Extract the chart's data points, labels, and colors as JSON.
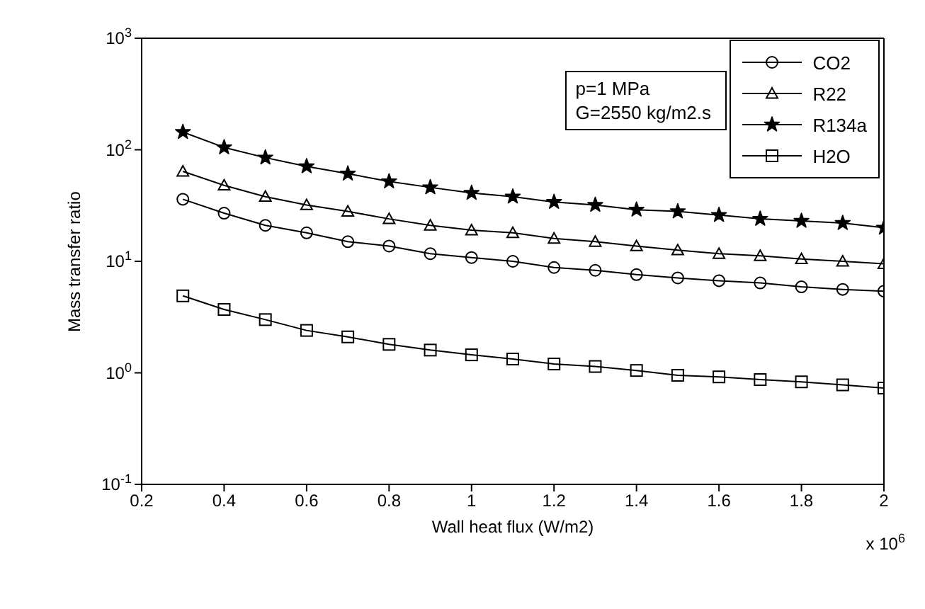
{
  "chart_data": {
    "type": "line",
    "xlabel": "Wall heat flux (W/m2)",
    "ylabel": "Mass transfer ratio",
    "x": [
      0.3,
      0.4,
      0.5,
      0.6,
      0.7,
      0.8,
      0.9,
      1.0,
      1.1,
      1.2,
      1.3,
      1.4,
      1.5,
      1.6,
      1.7,
      1.8,
      1.9,
      2.0
    ],
    "series": [
      {
        "name": "CO2",
        "color": "#000000",
        "marker": "circle",
        "values": [
          36,
          27,
          21,
          18,
          15,
          13.7,
          11.7,
          10.8,
          10,
          8.8,
          8.3,
          7.6,
          7.1,
          6.7,
          6.4,
          5.9,
          5.6,
          5.4
        ]
      },
      {
        "name": "R22",
        "color": "#000000",
        "marker": "triangle",
        "values": [
          64,
          48,
          38,
          32,
          28,
          24,
          21,
          19,
          18,
          16,
          15,
          13.7,
          12.6,
          11.7,
          11.2,
          10.5,
          10,
          9.5
        ]
      },
      {
        "name": "R134a",
        "color": "#000000",
        "marker": "star",
        "values": [
          144,
          105,
          85,
          71,
          61,
          52,
          46,
          41,
          38,
          34,
          32,
          29,
          28,
          26,
          24,
          23,
          22,
          20
        ]
      },
      {
        "name": "H2O",
        "color": "#000000",
        "marker": "square",
        "values": [
          4.9,
          3.7,
          3.0,
          2.4,
          2.1,
          1.8,
          1.6,
          1.45,
          1.33,
          1.2,
          1.14,
          1.05,
          0.95,
          0.92,
          0.87,
          0.83,
          0.78,
          0.73
        ]
      }
    ],
    "xlim": [
      0.2,
      2
    ],
    "xticks": [
      0.2,
      0.4,
      0.6,
      0.8,
      1,
      1.2,
      1.4,
      1.6,
      1.8,
      2
    ],
    "ylim": [
      0.1,
      1000
    ],
    "yticks": [
      {
        "value": 0.1,
        "label": "10$^{-1}$"
      },
      {
        "value": 1,
        "label": "10$^{0}$"
      },
      {
        "value": 10,
        "label": "10$^{1}$"
      },
      {
        "value": 100,
        "label": "10$^{2}$"
      },
      {
        "value": 1000,
        "label": "10$^{3}$"
      }
    ],
    "log": "y",
    "grid": false,
    "legend": "top right",
    "line_style": "solid",
    "annotations": [
      "p=1 MPa",
      "G=2550 kg/m2.s",
      "x 10$^{6}$"
    ]
  }
}
